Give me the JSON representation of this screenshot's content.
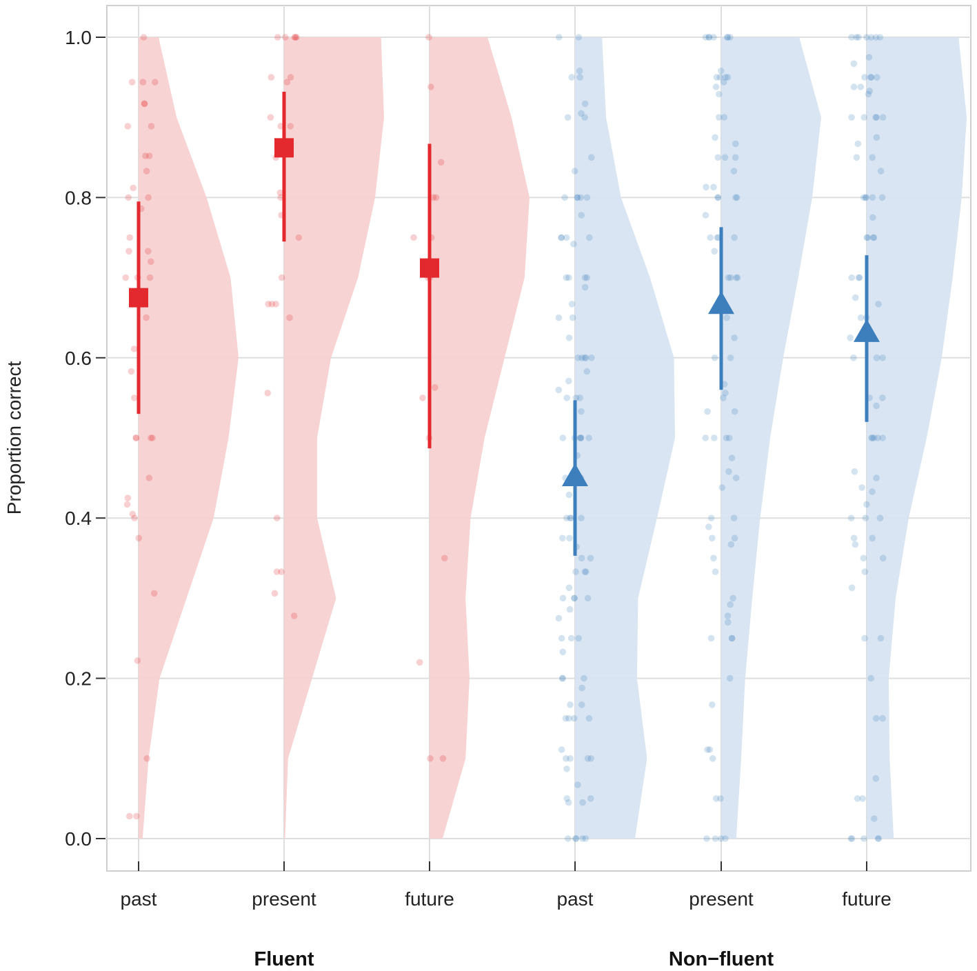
{
  "chart_data": {
    "type": "raincloud",
    "ylabel": "Proportion correct",
    "ylim": [
      0,
      1
    ],
    "yticks": [
      0.0,
      0.2,
      0.4,
      0.6,
      0.8,
      1.0
    ],
    "ytick_labels": [
      "0.0",
      "0.2",
      "0.4",
      "0.6",
      "0.8",
      "1.0"
    ],
    "grid": true,
    "groups": [
      {
        "name": "Fluent",
        "color": "#e3282e",
        "fill": "#f6cfcf",
        "marker": "square",
        "conditions": [
          {
            "label": "past",
            "mean": 0.675,
            "ci": [
              0.53,
              0.795
            ],
            "density": [
              0.04,
              0.1,
              0.21,
              0.48,
              0.75,
              0.9,
              1.0,
              0.92,
              0.68,
              0.38,
              0.2
            ],
            "points": [
              1.0,
              0.944,
              0.944,
              0.944,
              0.917,
              0.917,
              0.889,
              0.889,
              0.852,
              0.852,
              0.833,
              0.812,
              0.8,
              0.8,
              0.786,
              0.75,
              0.733,
              0.733,
              0.72,
              0.7,
              0.7,
              0.7,
              0.65,
              0.611,
              0.583,
              0.55,
              0.5,
              0.5,
              0.5,
              0.5,
              0.45,
              0.425,
              0.417,
              0.405,
              0.4,
              0.375,
              0.306,
              0.222,
              0.1,
              0.028,
              0.028
            ]
          },
          {
            "label": "present",
            "mean": 0.862,
            "ci": [
              0.745,
              0.932
            ],
            "density": [
              0.01,
              0.04,
              0.28,
              0.52,
              0.33,
              0.33,
              0.47,
              0.74,
              0.91,
              1.0,
              0.97
            ],
            "points": [
              1.0,
              1.0,
              1.0,
              1.0,
              1.0,
              0.95,
              0.95,
              0.944,
              0.9,
              0.889,
              0.889,
              0.867,
              0.85,
              0.806,
              0.8,
              0.778,
              0.75,
              0.7,
              0.667,
              0.667,
              0.667,
              0.65,
              0.556,
              0.4,
              0.333,
              0.333,
              0.306,
              0.278
            ]
          },
          {
            "label": "future",
            "mean": 0.712,
            "ci": [
              0.487,
              0.867
            ],
            "density": [
              0.13,
              0.36,
              0.4,
              0.36,
              0.41,
              0.55,
              0.75,
              0.95,
              1.0,
              0.82,
              0.58
            ],
            "points": [
              1.0,
              0.938,
              0.844,
              0.8,
              0.8,
              0.75,
              0.75,
              0.7,
              0.7,
              0.563,
              0.55,
              0.5,
              0.35,
              0.22,
              0.1,
              0.1
            ]
          }
        ]
      },
      {
        "name": "Non−fluent",
        "color": "#3d7fbc",
        "fill": "#d6e3f1",
        "marker": "triangle",
        "conditions": [
          {
            "label": "past",
            "mean": 0.452,
            "ci": [
              0.353,
              0.547
            ],
            "density": [
              0.6,
              0.72,
              0.62,
              0.63,
              0.82,
              1.0,
              0.99,
              0.75,
              0.46,
              0.31,
              0.27
            ],
            "points": [
              1.0,
              1.0,
              0.958,
              0.95,
              0.95,
              0.917,
              0.905,
              0.9,
              0.9,
              0.85,
              0.833,
              0.8,
              0.8,
              0.8,
              0.8,
              0.8,
              0.778,
              0.75,
              0.75,
              0.75,
              0.75,
              0.742,
              0.7,
              0.7,
              0.7,
              0.7,
              0.688,
              0.667,
              0.65,
              0.65,
              0.625,
              0.6,
              0.6,
              0.6,
              0.6,
              0.6,
              0.583,
              0.571,
              0.56,
              0.55,
              0.55,
              0.55,
              0.533,
              0.5,
              0.5,
              0.5,
              0.5,
              0.5,
              0.5,
              0.478,
              0.45,
              0.45,
              0.45,
              0.429,
              0.4,
              0.4,
              0.4,
              0.4,
              0.375,
              0.375,
              0.364,
              0.35,
              0.35,
              0.333,
              0.333,
              0.333,
              0.313,
              0.3,
              0.3,
              0.3,
              0.3,
              0.286,
              0.275,
              0.25,
              0.25,
              0.25,
              0.233,
              0.2,
              0.2,
              0.2,
              0.188,
              0.167,
              0.167,
              0.15,
              0.15,
              0.15,
              0.15,
              0.111,
              0.1,
              0.1,
              0.1,
              0.1,
              0.087,
              0.067,
              0.05,
              0.05,
              0.045,
              0.045,
              0.0,
              0.0,
              0.0,
              0.0,
              0.0
            ]
          },
          {
            "label": "present",
            "mean": 0.667,
            "ci": [
              0.56,
              0.763
            ],
            "density": [
              0.15,
              0.2,
              0.24,
              0.31,
              0.39,
              0.49,
              0.62,
              0.77,
              0.91,
              1.0,
              0.78
            ],
            "points": [
              1.0,
              1.0,
              1.0,
              1.0,
              1.0,
              1.0,
              1.0,
              0.958,
              0.95,
              0.95,
              0.95,
              0.95,
              0.944,
              0.938,
              0.929,
              0.9,
              0.9,
              0.875,
              0.867,
              0.85,
              0.85,
              0.85,
              0.833,
              0.813,
              0.813,
              0.8,
              0.8,
              0.8,
              0.8,
              0.778,
              0.75,
              0.75,
              0.75,
              0.75,
              0.733,
              0.7,
              0.7,
              0.7,
              0.7,
              0.667,
              0.65,
              0.625,
              0.6,
              0.6,
              0.567,
              0.556,
              0.55,
              0.533,
              0.533,
              0.5,
              0.5,
              0.5,
              0.5,
              0.475,
              0.458,
              0.45,
              0.438,
              0.4,
              0.4,
              0.389,
              0.375,
              0.375,
              0.367,
              0.35,
              0.333,
              0.3,
              0.292,
              0.278,
              0.27,
              0.25,
              0.25,
              0.25,
              0.2,
              0.167,
              0.111,
              0.111,
              0.1,
              0.05,
              0.05,
              0.0,
              0.0,
              0.0,
              0.0
            ]
          },
          {
            "label": "future",
            "mean": 0.632,
            "ci": [
              0.52,
              0.728
            ],
            "density": [
              0.27,
              0.23,
              0.22,
              0.29,
              0.42,
              0.6,
              0.75,
              0.86,
              0.95,
              1.0,
              0.92
            ],
            "points": [
              1.0,
              1.0,
              1.0,
              1.0,
              1.0,
              1.0,
              1.0,
              0.975,
              0.967,
              0.95,
              0.95,
              0.95,
              0.95,
              0.938,
              0.938,
              0.933,
              0.929,
              0.9,
              0.9,
              0.9,
              0.9,
              0.9,
              0.875,
              0.867,
              0.85,
              0.85,
              0.833,
              0.8,
              0.8,
              0.8,
              0.8,
              0.8,
              0.775,
              0.75,
              0.75,
              0.75,
              0.75,
              0.7,
              0.7,
              0.7,
              0.675,
              0.667,
              0.65,
              0.65,
              0.625,
              0.6,
              0.6,
              0.6,
              0.55,
              0.55,
              0.54,
              0.5,
              0.5,
              0.5,
              0.5,
              0.5,
              0.458,
              0.45,
              0.438,
              0.433,
              0.417,
              0.4,
              0.4,
              0.4,
              0.375,
              0.375,
              0.367,
              0.35,
              0.35,
              0.333,
              0.313,
              0.25,
              0.25,
              0.2,
              0.15,
              0.15,
              0.075,
              0.05,
              0.05,
              0.025,
              0.0,
              0.0,
              0.0,
              0.0,
              0.0
            ]
          }
        ]
      }
    ]
  }
}
